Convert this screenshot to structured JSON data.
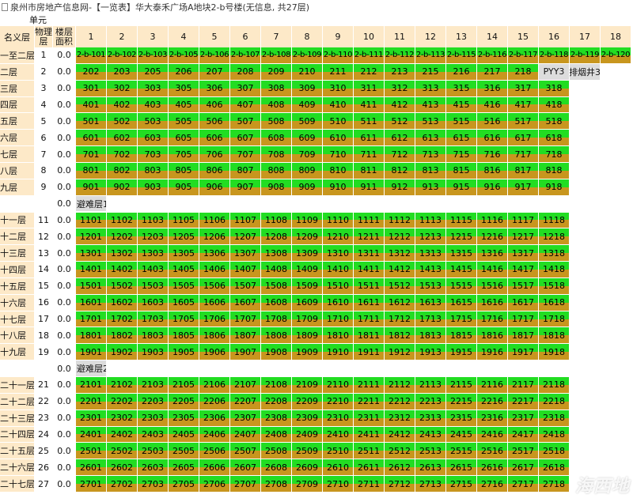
{
  "window": {
    "title": "泉州市房地产信息网-【一览表】华大泰禾广场A地块2-b号楼(无信息, 共27层)"
  },
  "header": {
    "unit_label": "单元",
    "name_col": "名义层",
    "phys_col": "物理层",
    "area_col": "楼层面积",
    "units": [
      "1",
      "2",
      "3",
      "4",
      "5",
      "6",
      "7",
      "8",
      "9",
      "10",
      "11",
      "12",
      "13",
      "14",
      "15",
      "16",
      "17",
      "18"
    ]
  },
  "floors": [
    {
      "type": "floor",
      "name": "一至二层",
      "phys": "1",
      "area": "0.0",
      "rooms": [
        "2-b-101",
        "2-b-102",
        "2-b-103",
        "2-b-105",
        "2-b-106",
        "2-b-107",
        "2-b-108",
        "2-b-109",
        "2-b-110",
        "2-b-111",
        "2-b-112",
        "2-b-113",
        "2-b-115",
        "2-b-116",
        "2-b-117",
        "2-b-118",
        "2-b-119",
        "2-b-120"
      ]
    },
    {
      "type": "floor",
      "name": "二层",
      "phys": "2",
      "area": "0.0",
      "rooms": [
        "202",
        "203",
        "205",
        "206",
        "207",
        "208",
        "209",
        "210",
        "211",
        "212",
        "213",
        "215",
        "216",
        "217",
        "218"
      ],
      "others": [
        "PYY3",
        "排烟井3"
      ]
    },
    {
      "type": "floor",
      "name": "三层",
      "phys": "3",
      "area": "0.0",
      "rooms": [
        "301",
        "302",
        "303",
        "305",
        "306",
        "307",
        "308",
        "309",
        "310",
        "311",
        "312",
        "313",
        "315",
        "316",
        "317",
        "318"
      ]
    },
    {
      "type": "floor",
      "name": "四层",
      "phys": "4",
      "area": "0.0",
      "rooms": [
        "401",
        "402",
        "403",
        "405",
        "406",
        "407",
        "408",
        "409",
        "410",
        "411",
        "412",
        "413",
        "415",
        "416",
        "417",
        "418"
      ]
    },
    {
      "type": "floor",
      "name": "五层",
      "phys": "5",
      "area": "0.0",
      "rooms": [
        "501",
        "502",
        "503",
        "505",
        "506",
        "507",
        "508",
        "509",
        "510",
        "511",
        "512",
        "513",
        "515",
        "516",
        "517",
        "518"
      ]
    },
    {
      "type": "floor",
      "name": "六层",
      "phys": "6",
      "area": "0.0",
      "rooms": [
        "601",
        "602",
        "603",
        "605",
        "606",
        "607",
        "608",
        "609",
        "610",
        "611",
        "612",
        "613",
        "615",
        "616",
        "617",
        "618"
      ]
    },
    {
      "type": "floor",
      "name": "七层",
      "phys": "7",
      "area": "0.0",
      "rooms": [
        "701",
        "702",
        "703",
        "705",
        "706",
        "707",
        "708",
        "709",
        "710",
        "711",
        "712",
        "713",
        "715",
        "716",
        "717",
        "718"
      ]
    },
    {
      "type": "floor",
      "name": "八层",
      "phys": "8",
      "area": "0.0",
      "rooms": [
        "801",
        "802",
        "803",
        "805",
        "806",
        "807",
        "808",
        "809",
        "810",
        "811",
        "812",
        "813",
        "815",
        "816",
        "817",
        "818"
      ]
    },
    {
      "type": "floor",
      "name": "九层",
      "phys": "9",
      "area": "0.0",
      "rooms": [
        "901",
        "902",
        "903",
        "905",
        "906",
        "907",
        "908",
        "909",
        "910",
        "911",
        "912",
        "913",
        "915",
        "916",
        "917",
        "918"
      ]
    },
    {
      "type": "avoid",
      "area": "0.0",
      "label": "避难层1"
    },
    {
      "type": "floor",
      "name": "十一层",
      "phys": "11",
      "area": "0.0",
      "rooms": [
        "1101",
        "1102",
        "1103",
        "1105",
        "1106",
        "1107",
        "1108",
        "1109",
        "1110",
        "1111",
        "1112",
        "1113",
        "1115",
        "1116",
        "1117",
        "1118"
      ]
    },
    {
      "type": "floor",
      "name": "十二层",
      "phys": "12",
      "area": "0.0",
      "rooms": [
        "1201",
        "1202",
        "1203",
        "1205",
        "1206",
        "1207",
        "1208",
        "1209",
        "1210",
        "1211",
        "1212",
        "1213",
        "1215",
        "1216",
        "1217",
        "1218"
      ]
    },
    {
      "type": "floor",
      "name": "十三层",
      "phys": "13",
      "area": "0.0",
      "rooms": [
        "1301",
        "1302",
        "1303",
        "1305",
        "1306",
        "1307",
        "1308",
        "1309",
        "1310",
        "1311",
        "1312",
        "1313",
        "1315",
        "1316",
        "1317",
        "1318"
      ]
    },
    {
      "type": "floor",
      "name": "十四层",
      "phys": "14",
      "area": "0.0",
      "rooms": [
        "1401",
        "1402",
        "1403",
        "1405",
        "1406",
        "1407",
        "1408",
        "1409",
        "1410",
        "1411",
        "1412",
        "1413",
        "1415",
        "1416",
        "1417",
        "1418"
      ]
    },
    {
      "type": "floor",
      "name": "十五层",
      "phys": "15",
      "area": "0.0",
      "rooms": [
        "1501",
        "1502",
        "1503",
        "1505",
        "1506",
        "1507",
        "1508",
        "1509",
        "1510",
        "1511",
        "1512",
        "1513",
        "1515",
        "1516",
        "1517",
        "1518"
      ]
    },
    {
      "type": "floor",
      "name": "十六层",
      "phys": "16",
      "area": "0.0",
      "rooms": [
        "1601",
        "1602",
        "1603",
        "1605",
        "1606",
        "1607",
        "1608",
        "1609",
        "1610",
        "1611",
        "1612",
        "1613",
        "1615",
        "1616",
        "1617",
        "1618"
      ]
    },
    {
      "type": "floor",
      "name": "十七层",
      "phys": "17",
      "area": "0.0",
      "rooms": [
        "1701",
        "1702",
        "1703",
        "1705",
        "1706",
        "1707",
        "1708",
        "1709",
        "1710",
        "1711",
        "1712",
        "1713",
        "1715",
        "1716",
        "1717",
        "1718"
      ]
    },
    {
      "type": "floor",
      "name": "十八层",
      "phys": "18",
      "area": "0.0",
      "rooms": [
        "1801",
        "1802",
        "1803",
        "1805",
        "1806",
        "1807",
        "1808",
        "1809",
        "1810",
        "1811",
        "1812",
        "1813",
        "1815",
        "1816",
        "1817",
        "1818"
      ]
    },
    {
      "type": "floor",
      "name": "十九层",
      "phys": "19",
      "area": "0.0",
      "rooms": [
        "1901",
        "1902",
        "1903",
        "1905",
        "1906",
        "1907",
        "1908",
        "1909",
        "1910",
        "1911",
        "1912",
        "1913",
        "1915",
        "1916",
        "1917",
        "1918"
      ]
    },
    {
      "type": "avoid",
      "area": "0.0",
      "label": "避难层2"
    },
    {
      "type": "floor",
      "name": "二十一层",
      "phys": "21",
      "area": "0.0",
      "rooms": [
        "2101",
        "2102",
        "2103",
        "2105",
        "2106",
        "2107",
        "2108",
        "2109",
        "2110",
        "2111",
        "2112",
        "2113",
        "2115",
        "2116",
        "2117",
        "2118"
      ]
    },
    {
      "type": "floor",
      "name": "二十二层",
      "phys": "22",
      "area": "0.0",
      "rooms": [
        "2201",
        "2202",
        "2203",
        "2205",
        "2206",
        "2207",
        "2208",
        "2209",
        "2210",
        "2211",
        "2212",
        "2213",
        "2215",
        "2216",
        "2217",
        "2218"
      ]
    },
    {
      "type": "floor",
      "name": "二十三层",
      "phys": "23",
      "area": "0.0",
      "rooms": [
        "2301",
        "2302",
        "2303",
        "2305",
        "2306",
        "2307",
        "2308",
        "2309",
        "2310",
        "2311",
        "2312",
        "2313",
        "2315",
        "2316",
        "2317",
        "2318"
      ]
    },
    {
      "type": "floor",
      "name": "二十四层",
      "phys": "24",
      "area": "0.0",
      "rooms": [
        "2401",
        "2402",
        "2403",
        "2405",
        "2406",
        "2407",
        "2408",
        "2409",
        "2410",
        "2411",
        "2412",
        "2413",
        "2415",
        "2416",
        "2417",
        "2418"
      ]
    },
    {
      "type": "floor",
      "name": "二十五层",
      "phys": "25",
      "area": "0.0",
      "rooms": [
        "2501",
        "2502",
        "2503",
        "2505",
        "2506",
        "2507",
        "2508",
        "2509",
        "2510",
        "2511",
        "2512",
        "2513",
        "2515",
        "2516",
        "2517",
        "2518"
      ]
    },
    {
      "type": "floor",
      "name": "二十六层",
      "phys": "26",
      "area": "0.0",
      "rooms": [
        "2601",
        "2602",
        "2603",
        "2605",
        "2606",
        "2607",
        "2608",
        "2609",
        "2610",
        "2611",
        "2612",
        "2613",
        "2615",
        "2616",
        "2617",
        "2618"
      ]
    },
    {
      "type": "floor",
      "name": "二十七层",
      "phys": "27",
      "area": "0.0",
      "rooms": [
        "2701",
        "2702",
        "2703",
        "2705",
        "2706",
        "2707",
        "2708",
        "2709",
        "2710",
        "2711",
        "2712",
        "2713",
        "2715",
        "2716",
        "2717",
        "2718"
      ]
    }
  ],
  "colors": {
    "room_top": "#22dd22",
    "room_bottom": "#c8961e",
    "header_bg": "#fde9c8",
    "special_bg": "#dcdcdc"
  },
  "watermark": "海西地"
}
